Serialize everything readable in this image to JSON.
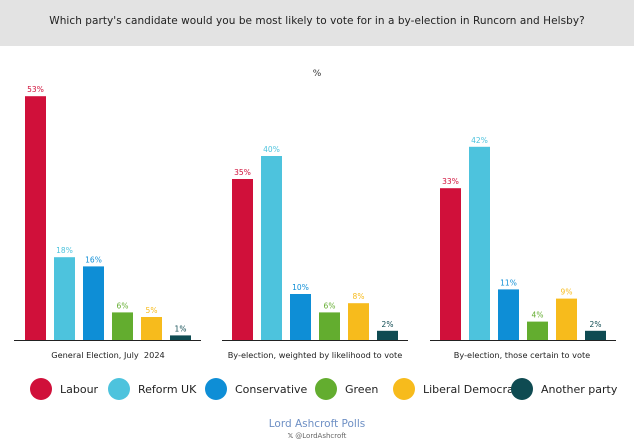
{
  "header": {
    "title": "Which party's candidate would you be most likely to vote for in a by-election in Runcorn and Helsby?"
  },
  "colors": {
    "Labour": "#d0103a",
    "Reform UK": "#4dc3dd",
    "Conservative": "#0e8ed6",
    "Green": "#63ad2f",
    "Liberal Democrat": "#f7bb1c",
    "Another party": "#0f4b52"
  },
  "chart_data": {
    "type": "bar",
    "title": "%",
    "grid": false,
    "series_names": [
      "Labour",
      "Reform UK",
      "Conservative",
      "Green",
      "Liberal Democrat",
      "Another party"
    ],
    "groups": [
      {
        "label": "General Election, July  2024",
        "values": [
          53,
          18,
          16,
          6,
          5,
          1
        ],
        "value_labels": [
          "53%",
          "18%",
          "16%",
          "6%",
          "5%",
          "1%"
        ]
      },
      {
        "label": "By-election, weighted by likelihood to vote",
        "values": [
          35,
          40,
          10,
          6,
          8,
          2
        ],
        "value_labels": [
          "35%",
          "40%",
          "10%",
          "6%",
          "8%",
          "2%"
        ]
      },
      {
        "label": "By-election, those certain to vote",
        "values": [
          33,
          42,
          11,
          4,
          9,
          2
        ],
        "value_labels": [
          "33%",
          "42%",
          "11%",
          "4%",
          "9%",
          "2%"
        ]
      }
    ],
    "ylim": [
      0,
      55
    ],
    "legend_position": "bottom"
  },
  "legend": {
    "items": [
      {
        "label": "Labour",
        "icon": "red-dot-icon"
      },
      {
        "label": "Reform UK",
        "icon": "light-blue-dot-icon"
      },
      {
        "label": "Conservative",
        "icon": "blue-dot-icon"
      },
      {
        "label": "Green",
        "icon": "green-dot-icon"
      },
      {
        "label": "Liberal Democrat",
        "icon": "yellow-dot-icon"
      },
      {
        "label": "Another party",
        "icon": "dark-teal-dot-icon"
      }
    ]
  },
  "footer": {
    "brand": "Lord Ashcroft Polls",
    "x_icon": "𝕏",
    "handle": "@LordAshcroft"
  }
}
